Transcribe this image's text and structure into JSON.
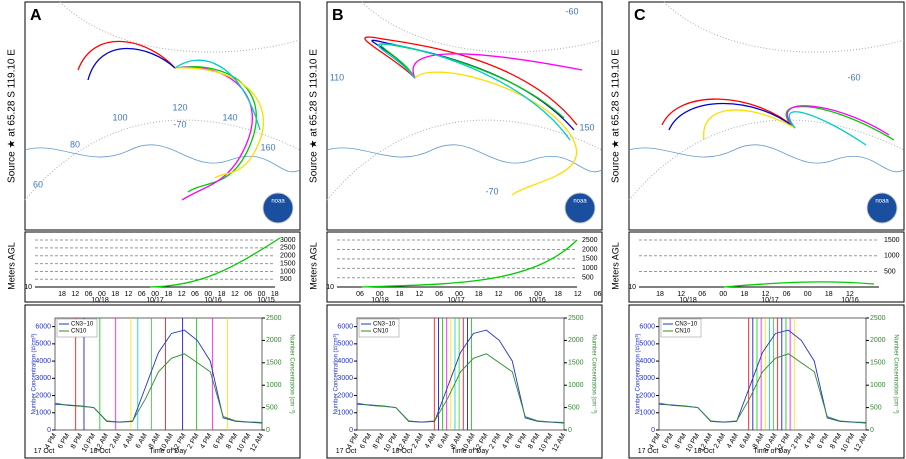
{
  "panels": [
    {
      "label": "A",
      "source_label": "Source ★ at  65.28 S  119.10 E",
      "logo_text": "noaa",
      "map_labels": [
        "-70",
        "120",
        "100",
        "80",
        "60",
        "140",
        "160"
      ],
      "agl": {
        "ylabel": "Meters AGL",
        "ylim": [
          10,
          3000
        ],
        "yticks": [
          10,
          500,
          1000,
          1500,
          2000,
          2500,
          3000
        ],
        "xticks": [
          "18",
          "12",
          "06",
          "00",
          "18",
          "12",
          "06",
          "00",
          "18",
          "12",
          "06",
          "00",
          "18",
          "12",
          "06",
          "00",
          "18"
        ],
        "dates": [
          "10/18",
          "10/17",
          "10/16",
          "10/15"
        ]
      }
    },
    {
      "label": "B",
      "source_label": "Source ★ at  65.28 S  119.10 E",
      "logo_text": "noaa",
      "map_labels": [
        "-60",
        "110",
        "150",
        "-70"
      ],
      "agl": {
        "ylabel": "Meters AGL",
        "ylim": [
          10,
          2500
        ],
        "yticks": [
          10,
          500,
          1000,
          1500,
          2000,
          2500
        ],
        "xticks": [
          "06",
          "00",
          "18",
          "12",
          "06",
          "00",
          "18",
          "12",
          "06",
          "00",
          "18",
          "12",
          "06"
        ],
        "dates": [
          "10/18",
          "10/17",
          "10/16"
        ]
      }
    },
    {
      "label": "C",
      "source_label": "Source ★ at  65.28 S  119.10 E",
      "logo_text": "noaa",
      "map_labels": [
        "-60"
      ],
      "agl": {
        "ylabel": "Meters AGL",
        "ylim": [
          10,
          1500
        ],
        "yticks": [
          10,
          500,
          1000,
          1500
        ],
        "xticks": [
          "18",
          "12",
          "06",
          "00",
          "18",
          "12",
          "06",
          "00",
          "18",
          "12"
        ],
        "dates": [
          "10/18",
          "10/17",
          "10/16"
        ]
      }
    }
  ],
  "chart_data": [
    {
      "type": "line",
      "ylabel": "Number Concentration (#/cm³)",
      "y2label": "Number Concentration (cm⁻³)",
      "xlabel": "Time of Day",
      "date_labels": [
        "17 Oct",
        "18 Oct"
      ],
      "categories": [
        "4 PM",
        "6 PM",
        "8 PM",
        "10 PM",
        "12 AM",
        "2 AM",
        "4 AM",
        "6 AM",
        "8 AM",
        "10 AM",
        "12 PM",
        "2 PM",
        "4 PM",
        "6 PM",
        "8 PM",
        "10 PM",
        "12 AM"
      ],
      "ylim": [
        0,
        6500
      ],
      "yticks": [
        0,
        1000,
        2000,
        3000,
        4000,
        5000,
        6000
      ],
      "y2lim": [
        0,
        2500
      ],
      "y2ticks": [
        0,
        500,
        1000,
        1500,
        2000,
        2500
      ],
      "series": [
        {
          "name": "CN3−10",
          "color": "#2233cc",
          "values": [
            1500,
            1450,
            1400,
            1300,
            500,
            450,
            500,
            2500,
            4500,
            5600,
            5800,
            5200,
            4000,
            700,
            500,
            450,
            400
          ]
        },
        {
          "name": "CN10",
          "color": "#2e8b2e",
          "axis": "y2",
          "values": [
            600,
            550,
            530,
            500,
            200,
            180,
            200,
            700,
            1300,
            1600,
            1700,
            1500,
            1300,
            300,
            200,
            180,
            170
          ]
        }
      ]
    },
    {
      "type": "line",
      "ylabel": "Number Concentration (#/cm³)",
      "y2label": "Number Concentration (cm⁻³)",
      "xlabel": "Time of Day",
      "date_labels": [
        "17 Oct",
        "18 Oct"
      ],
      "categories": [
        "4 PM",
        "6 PM",
        "8 PM",
        "10 PM",
        "12 AM",
        "2 AM",
        "4 AM",
        "6 AM",
        "8 AM",
        "10 AM",
        "12 PM",
        "2 PM",
        "4 PM",
        "6 PM",
        "8 PM",
        "10 PM",
        "12 AM"
      ],
      "ylim": [
        0,
        6500
      ],
      "yticks": [
        0,
        1000,
        2000,
        3000,
        4000,
        5000,
        6000
      ],
      "y2lim": [
        0,
        2500
      ],
      "y2ticks": [
        0,
        500,
        1000,
        1500,
        2000,
        2500
      ],
      "series": [
        {
          "name": "CN3−10",
          "color": "#2233cc",
          "values": [
            1500,
            1450,
            1400,
            1300,
            500,
            450,
            500,
            2500,
            4500,
            5600,
            5800,
            5200,
            4000,
            700,
            500,
            450,
            400
          ]
        },
        {
          "name": "CN10",
          "color": "#2e8b2e",
          "axis": "y2",
          "values": [
            600,
            550,
            530,
            500,
            200,
            180,
            200,
            700,
            1300,
            1600,
            1700,
            1500,
            1300,
            300,
            200,
            180,
            170
          ]
        }
      ]
    },
    {
      "type": "line",
      "ylabel": "Number Concentration (#/cm³)",
      "y2label": "Number Concentration (cm⁻³)",
      "xlabel": "Time of Day",
      "date_labels": [
        "17 Oct",
        "18 Oct"
      ],
      "categories": [
        "4 PM",
        "6 PM",
        "8 PM",
        "10 PM",
        "12 AM",
        "2 AM",
        "4 AM",
        "6 AM",
        "8 AM",
        "10 AM",
        "12 PM",
        "2 PM",
        "4 PM",
        "6 PM",
        "8 PM",
        "10 PM",
        "12 AM"
      ],
      "ylim": [
        0,
        6500
      ],
      "yticks": [
        0,
        1000,
        2000,
        3000,
        4000,
        5000,
        6000
      ],
      "y2lim": [
        0,
        2500
      ],
      "y2ticks": [
        0,
        500,
        1000,
        1500,
        2000,
        2500
      ],
      "series": [
        {
          "name": "CN3−10",
          "color": "#2233cc",
          "values": [
            1500,
            1450,
            1400,
            1300,
            500,
            450,
            500,
            2500,
            4500,
            5600,
            5800,
            5200,
            4000,
            700,
            500,
            450,
            400
          ]
        },
        {
          "name": "CN10",
          "color": "#2e8b2e",
          "axis": "y2",
          "values": [
            600,
            550,
            530,
            500,
            200,
            180,
            200,
            700,
            1300,
            1600,
            1700,
            1500,
            1300,
            300,
            200,
            180,
            170
          ]
        }
      ]
    }
  ]
}
